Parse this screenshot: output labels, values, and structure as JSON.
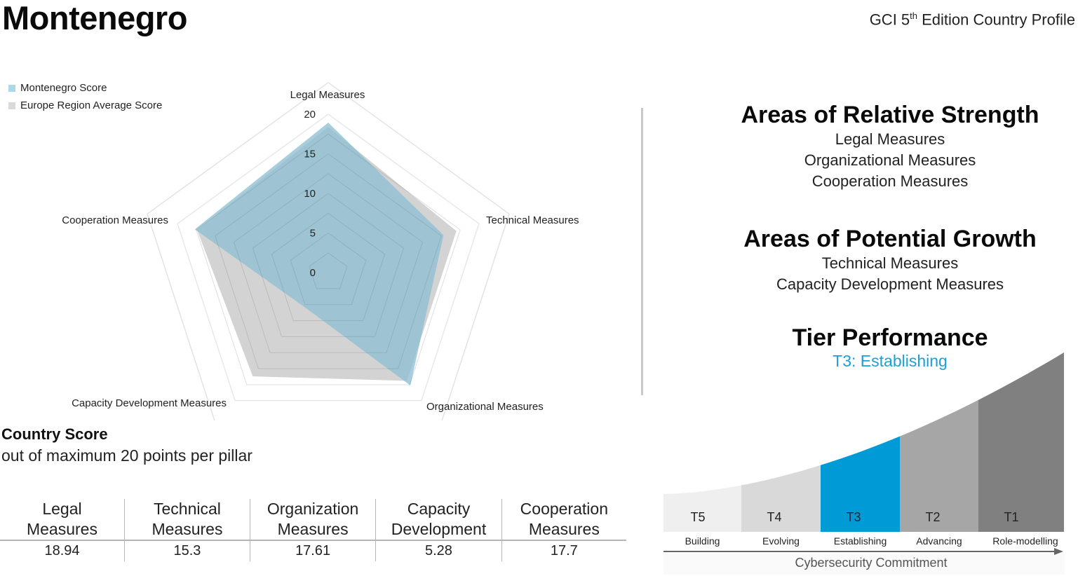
{
  "header": {
    "country": "Montenegro",
    "edition_prefix": "GCI 5",
    "edition_sup": "th",
    "edition_suffix": " Edition Country Profile"
  },
  "colors": {
    "country_fill": "#8fc0d3",
    "europe_fill": "#d3d3d3",
    "accent": "#1aa0d6",
    "tier_colors": [
      "#efefef",
      "#d9d9d9",
      "#009ad6",
      "#a6a6a6",
      "#808080"
    ]
  },
  "chart_data": {
    "type": "radar",
    "axes": [
      "Legal Measures",
      "Technical Measures",
      "Organizational Measures",
      "Capacity Development Measures",
      "Cooperation Measures"
    ],
    "ticks": [
      0,
      5,
      10,
      15,
      20
    ],
    "tick_labels": [
      "0",
      "5",
      "10",
      "15",
      "20"
    ],
    "rlim": [
      0,
      20
    ],
    "grid": true,
    "legend_position": "top-left",
    "series": [
      {
        "name": "Montenegro Score",
        "values": [
          18.94,
          15.3,
          17.61,
          5.28,
          17.7
        ]
      },
      {
        "name": "Europe Region Average Score",
        "values": [
          18.4,
          17.0,
          16.9,
          16.2,
          17.4
        ]
      }
    ]
  },
  "strength": {
    "title": "Areas of Relative Strength",
    "items": [
      "Legal Measures",
      "Organizational Measures",
      "Cooperation Measures"
    ]
  },
  "growth": {
    "title": "Areas of Potential Growth",
    "items": [
      "Technical Measures",
      "Capacity Development Measures"
    ]
  },
  "tier": {
    "title": "Tier Performance",
    "current": "T3: Establishing",
    "current_index": 2,
    "tiers": [
      {
        "code": "T5",
        "name": "Building"
      },
      {
        "code": "T4",
        "name": "Evolving"
      },
      {
        "code": "T3",
        "name": "Establishing"
      },
      {
        "code": "T2",
        "name": "Advancing"
      },
      {
        "code": "T1",
        "name": "Role-modelling"
      }
    ],
    "axis_label": "Cybersecurity Commitment"
  },
  "country_score": {
    "title": "Country Score",
    "subtitle": "out of maximum 20 points per pillar",
    "headers": [
      [
        "Legal",
        "Measures"
      ],
      [
        "Technical",
        "Measures"
      ],
      [
        "Organization",
        "Measures"
      ],
      [
        "Capacity",
        "Development"
      ],
      [
        "Cooperation",
        "Measures"
      ]
    ],
    "values": [
      "18.94",
      "15.3",
      "17.61",
      "5.28",
      "17.7"
    ]
  }
}
